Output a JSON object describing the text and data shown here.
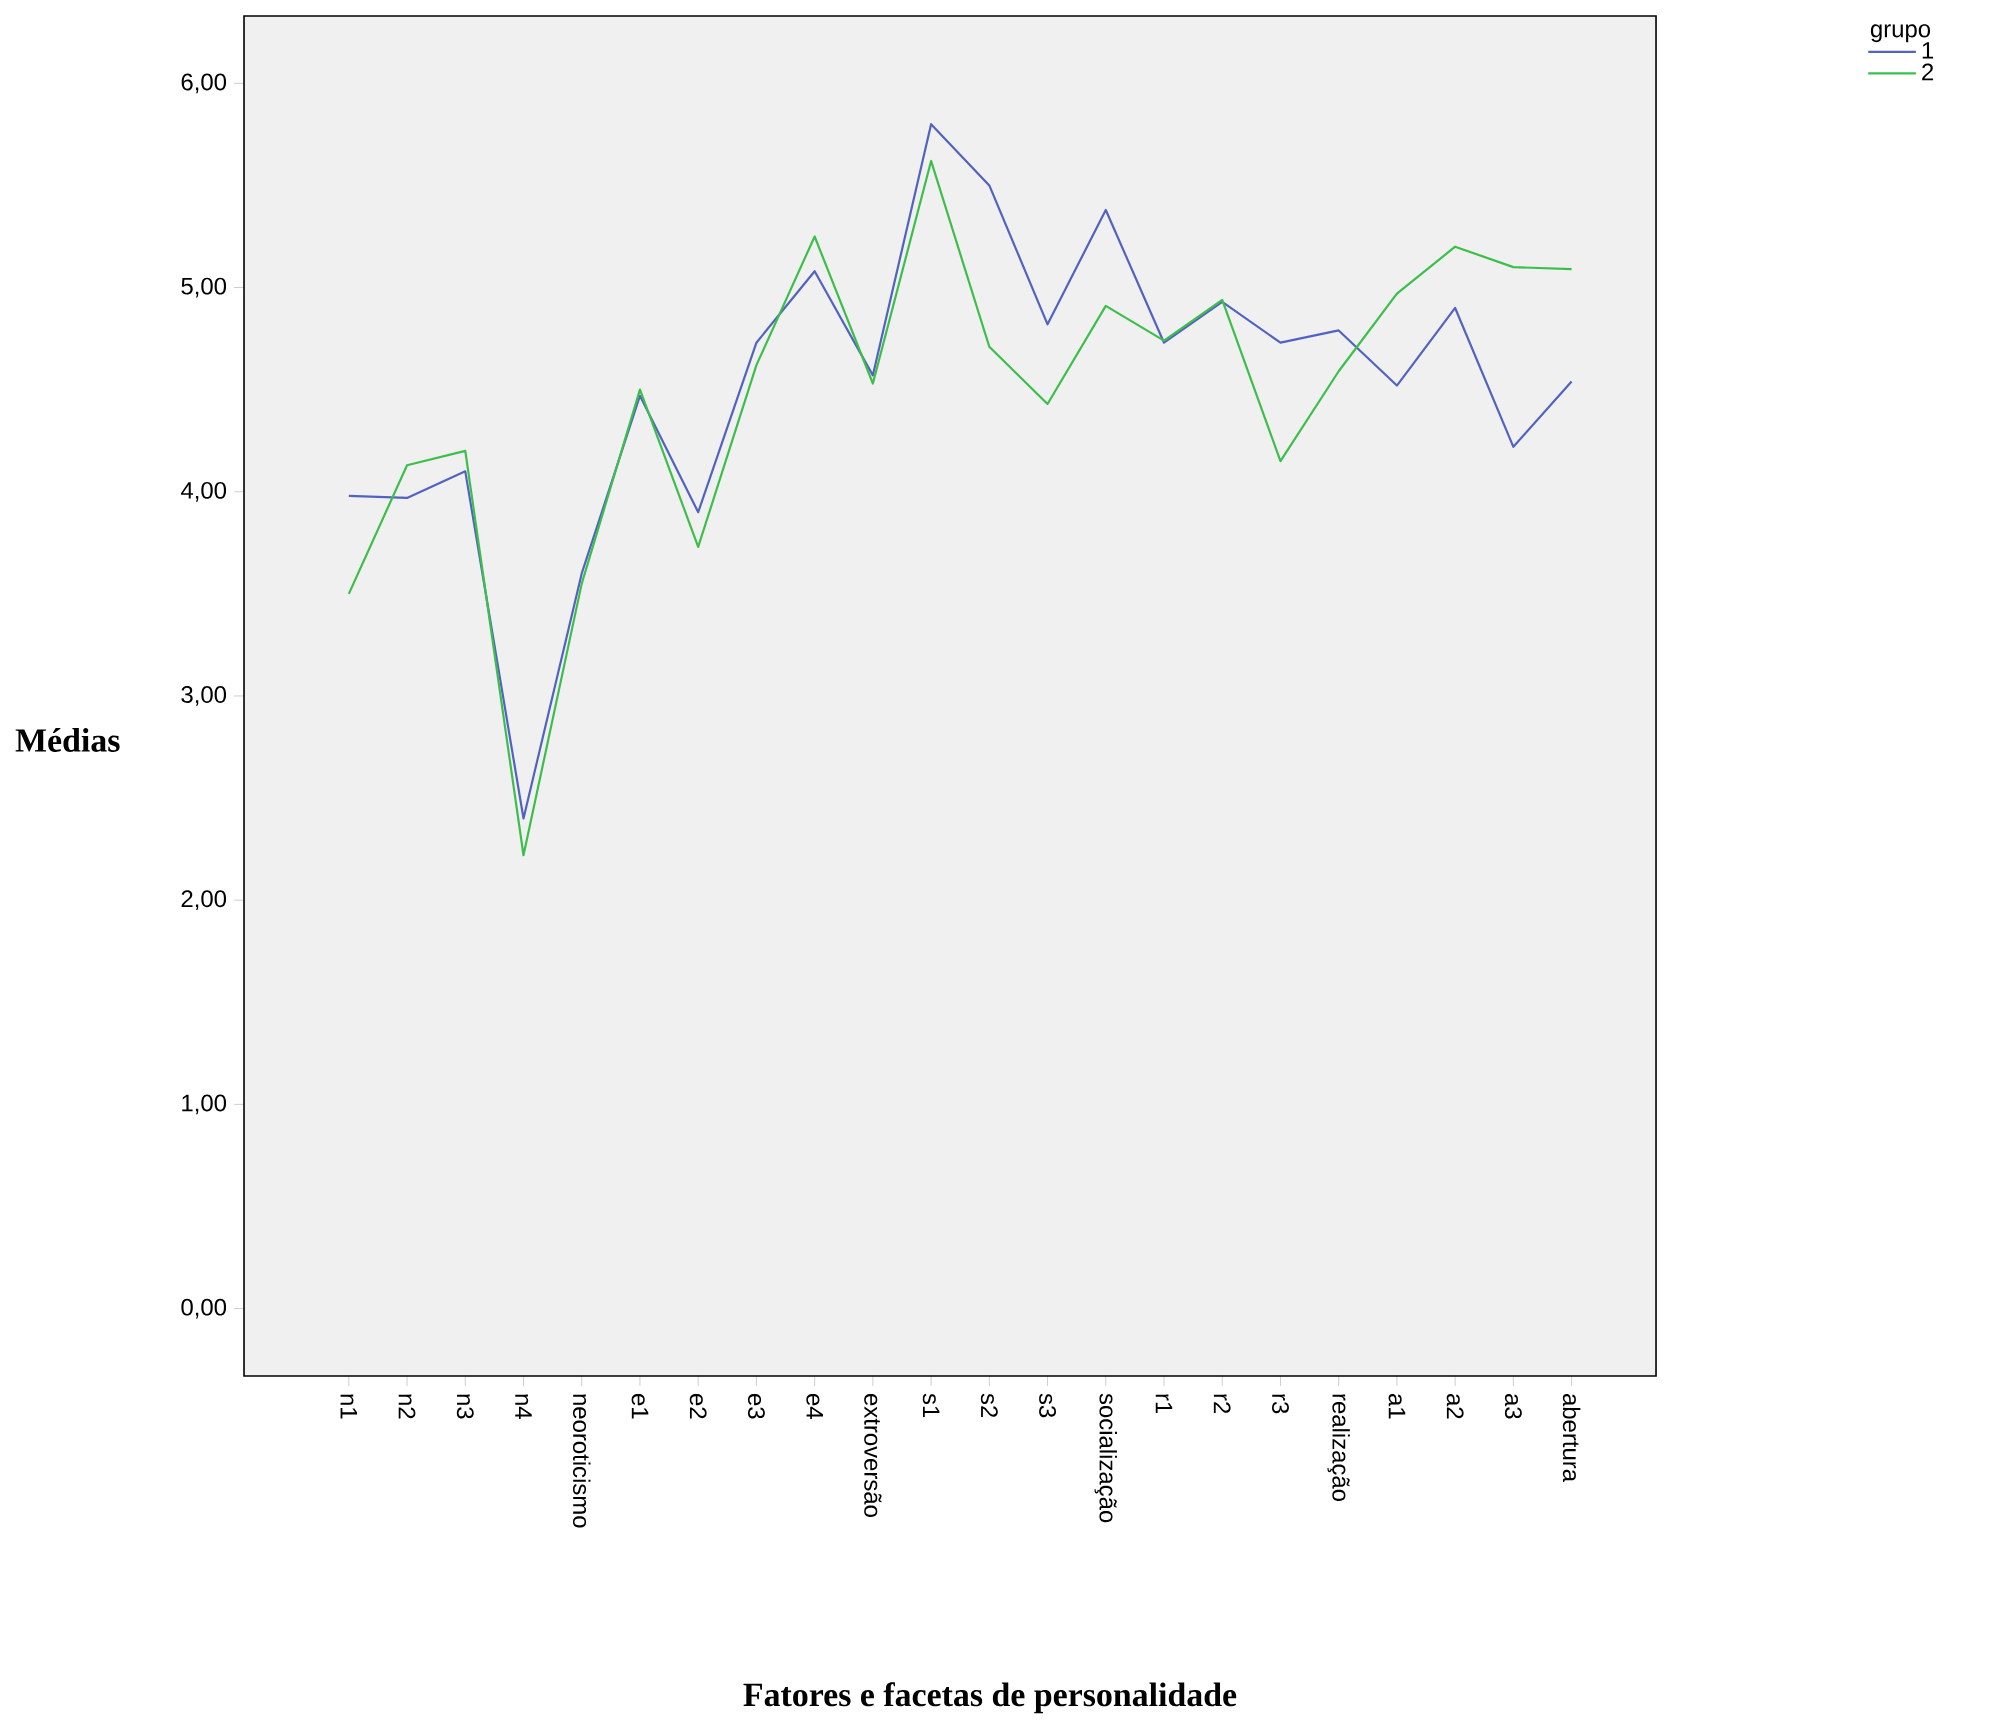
{
  "chart_data": {
    "type": "line",
    "xlabel": "Fatores e facetas de personalidade",
    "ylabel": "Médias",
    "legend_title": "grupo",
    "legend": "top right",
    "categories": [
      "n1",
      "n2",
      "n3",
      "n4",
      "neoroticismo",
      "e1",
      "e2",
      "e3",
      "e4",
      "extroversão",
      "s1",
      "s2",
      "s3",
      "socialização",
      "r1",
      "r2",
      "r3",
      "realização",
      "a1",
      "a2",
      "a3",
      "abertura"
    ],
    "series": [
      {
        "name": "1",
        "color": "#5262c0",
        "values": [
          3.98,
          3.97,
          4.1,
          2.4,
          3.6,
          4.47,
          3.9,
          4.73,
          5.08,
          4.57,
          5.8,
          5.5,
          4.82,
          5.38,
          4.73,
          4.93,
          4.73,
          4.79,
          4.52,
          4.9,
          4.22,
          4.54
        ]
      },
      {
        "name": "2",
        "color": "#3cbf4a",
        "values": [
          3.5,
          4.13,
          4.2,
          2.22,
          3.55,
          4.5,
          3.73,
          4.62,
          5.25,
          4.53,
          5.62,
          4.71,
          4.43,
          4.91,
          4.74,
          4.94,
          4.15,
          4.59,
          4.97,
          5.2,
          5.1,
          5.09
        ]
      }
    ],
    "ylim": [
      -0.33,
      6.33
    ],
    "yticks": [
      {
        "value": 0,
        "label": "0,00"
      },
      {
        "value": 1,
        "label": "1,00"
      },
      {
        "value": 2,
        "label": "2,00"
      },
      {
        "value": 3,
        "label": "3,00"
      },
      {
        "value": 4,
        "label": "4,00"
      },
      {
        "value": 5,
        "label": "5,00"
      },
      {
        "value": 6,
        "label": "6,00"
      }
    ],
    "grid": false,
    "marker": "none",
    "line_style": "solid"
  }
}
